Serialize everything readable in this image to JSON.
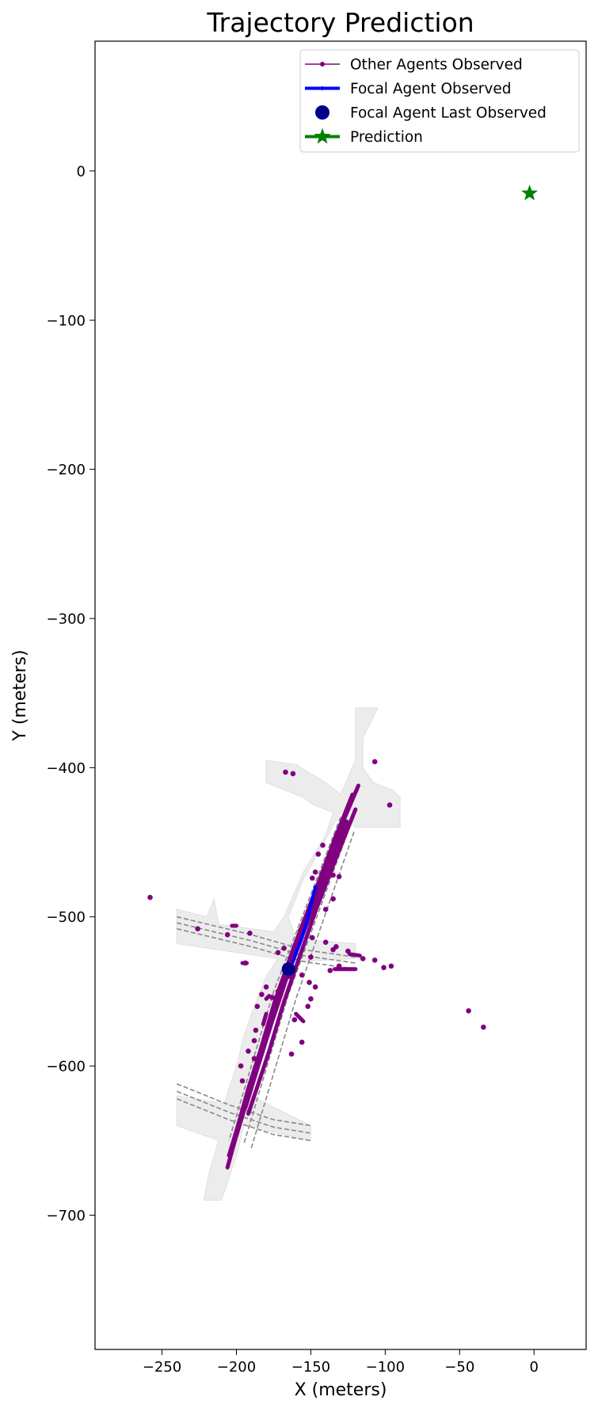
{
  "chart_data": {
    "type": "scatter",
    "title": "Trajectory Prediction",
    "xlabel": "X (meters)",
    "ylabel": "Y (meters)",
    "xlim": [
      -295,
      35
    ],
    "ylim": [
      -790,
      87
    ],
    "xticks": [
      -250,
      -200,
      -150,
      -100,
      -50,
      0
    ],
    "yticks": [
      0,
      -100,
      -200,
      -300,
      -400,
      -500,
      -600,
      -700
    ],
    "tick_labels_x": [
      "−250",
      "−200",
      "−150",
      "−100",
      "−50",
      "0"
    ],
    "tick_labels_y": [
      "0",
      "−100",
      "−200",
      "−300",
      "−400",
      "−500",
      "−600",
      "−700"
    ],
    "grid": false,
    "legend_position": "top-right",
    "legend": [
      {
        "label": "Other Agents Observed",
        "color": "#800080",
        "style": "line-dot"
      },
      {
        "label": "Focal Agent Observed",
        "color": "#0000ff",
        "style": "thick-line"
      },
      {
        "label": "Focal Agent Last Observed",
        "color": "#00008b",
        "style": "circle"
      },
      {
        "label": "Prediction",
        "color": "#008000",
        "style": "star-line"
      }
    ],
    "map_areas": [
      [
        [
          -120,
          -360
        ],
        [
          -105,
          -360
        ],
        [
          -115,
          -380
        ],
        [
          -115,
          -400
        ],
        [
          -108,
          -410
        ],
        [
          -95,
          -415
        ],
        [
          -90,
          -420
        ],
        [
          -90,
          -440
        ],
        [
          -120,
          -440
        ],
        [
          -130,
          -430
        ],
        [
          -155,
          -475
        ],
        [
          -165,
          -500
        ],
        [
          -160,
          -515
        ],
        [
          -120,
          -518
        ],
        [
          -120,
          -528
        ],
        [
          -160,
          -530
        ],
        [
          -165,
          -545
        ],
        [
          -175,
          -570
        ],
        [
          -185,
          -600
        ],
        [
          -190,
          -620
        ],
        [
          -150,
          -640
        ],
        [
          -150,
          -650
        ],
        [
          -195,
          -640
        ],
        [
          -200,
          -660
        ],
        [
          -205,
          -675
        ],
        [
          -210,
          -690
        ],
        [
          -222,
          -690
        ],
        [
          -218,
          -670
        ],
        [
          -215,
          -660
        ],
        [
          -212,
          -650
        ],
        [
          -240,
          -640
        ],
        [
          -240,
          -620
        ],
        [
          -208,
          -625
        ],
        [
          -205,
          -615
        ],
        [
          -200,
          -600
        ],
        [
          -195,
          -580
        ],
        [
          -188,
          -560
        ],
        [
          -180,
          -540
        ],
        [
          -172,
          -528
        ],
        [
          -240,
          -518
        ],
        [
          -240,
          -495
        ],
        [
          -220,
          -500
        ],
        [
          -215,
          -488
        ],
        [
          -212,
          -505
        ],
        [
          -175,
          -510
        ],
        [
          -168,
          -500
        ],
        [
          -155,
          -470
        ],
        [
          -140,
          -445
        ],
        [
          -135,
          -430
        ],
        [
          -148,
          -425
        ],
        [
          -155,
          -420
        ],
        [
          -180,
          -410
        ],
        [
          -180,
          -395
        ],
        [
          -160,
          -398
        ],
        [
          -140,
          -410
        ],
        [
          -130,
          -418
        ],
        [
          -120,
          -395
        ]
      ]
    ],
    "lane_lines": [
      [
        [
          -130,
          -433
        ],
        [
          -175,
          -550
        ],
        [
          -205,
          -650
        ]
      ],
      [
        [
          -127,
          -436
        ],
        [
          -170,
          -550
        ],
        [
          -200,
          -650
        ]
      ],
      [
        [
          -124,
          -440
        ],
        [
          -165,
          -552
        ],
        [
          -195,
          -652
        ]
      ],
      [
        [
          -121,
          -443
        ],
        [
          -160,
          -555
        ],
        [
          -190,
          -655
        ]
      ],
      [
        [
          -240,
          -500
        ],
        [
          -190,
          -512
        ],
        [
          -155,
          -522
        ],
        [
          -120,
          -527
        ]
      ],
      [
        [
          -240,
          -504
        ],
        [
          -190,
          -516
        ],
        [
          -155,
          -526
        ],
        [
          -120,
          -531
        ]
      ],
      [
        [
          -240,
          -508
        ],
        [
          -190,
          -520
        ],
        [
          -155,
          -530
        ],
        [
          -120,
          -535
        ]
      ],
      [
        [
          -240,
          -612
        ],
        [
          -205,
          -626
        ],
        [
          -175,
          -636
        ],
        [
          -150,
          -640
        ]
      ],
      [
        [
          -240,
          -617
        ],
        [
          -205,
          -631
        ],
        [
          -175,
          -641
        ],
        [
          -150,
          -645
        ]
      ],
      [
        [
          -240,
          -622
        ],
        [
          -205,
          -636
        ],
        [
          -175,
          -646
        ],
        [
          -150,
          -650
        ]
      ]
    ],
    "series": [
      {
        "name": "Other Agents Observed",
        "color": "#800080",
        "tracks": [
          [
            [
              -118,
              -412
            ],
            [
              -130,
              -440
            ],
            [
              -145,
              -480
            ],
            [
              -158,
              -515
            ],
            [
              -170,
              -548
            ],
            [
              -180,
              -580
            ],
            [
              -188,
              -605
            ],
            [
              -195,
              -630
            ],
            [
              -201,
              -650
            ],
            [
              -206,
              -668
            ]
          ],
          [
            [
              -122,
              -418
            ],
            [
              -134,
              -448
            ],
            [
              -149,
              -488
            ],
            [
              -162,
              -522
            ],
            [
              -174,
              -556
            ],
            [
              -184,
              -590
            ],
            [
              -192,
              -615
            ],
            [
              -199,
              -640
            ],
            [
              -205,
              -660
            ]
          ],
          [
            [
              -126,
              -436
            ],
            [
              -140,
              -472
            ],
            [
              -154,
              -508
            ],
            [
              -166,
              -540
            ],
            [
              -176,
              -570
            ],
            [
              -186,
              -602
            ],
            [
              -194,
              -628
            ]
          ],
          [
            [
              -120,
              -428
            ],
            [
              -132,
              -458
            ],
            [
              -146,
              -494
            ],
            [
              -158,
              -528
            ],
            [
              -169,
              -560
            ],
            [
              -178,
              -590
            ],
            [
              -186,
              -614
            ],
            [
              -192,
              -632
            ]
          ],
          [
            [
              -124,
              -525
            ],
            [
              -117,
              -526
            ]
          ],
          [
            [
              -134,
              -535
            ],
            [
              -120,
              -535
            ]
          ],
          [
            [
              -178,
              -553
            ],
            [
              -180,
              -555
            ]
          ],
          [
            [
              -180,
              -565
            ],
            [
              -182,
              -572
            ]
          ],
          [
            [
              -193,
              -531
            ],
            [
              -196,
              -531
            ]
          ],
          [
            [
              -160,
              -565
            ],
            [
              -155,
              -570
            ]
          ],
          [
            [
              -203,
              -506
            ],
            [
              -200,
              -506
            ]
          ]
        ],
        "points": [
          [
            -258,
            -487
          ],
          [
            -194,
            -531
          ],
          [
            -172,
            -524
          ],
          [
            -168,
            -521
          ],
          [
            -226,
            -508
          ],
          [
            -206,
            -512
          ],
          [
            -191,
            -511
          ],
          [
            -167,
            -403
          ],
          [
            -162,
            -404
          ],
          [
            -107,
            -396
          ],
          [
            -97,
            -425
          ],
          [
            -149,
            -474
          ],
          [
            -145,
            -458
          ],
          [
            -142,
            -452
          ],
          [
            -147,
            -470
          ],
          [
            -140,
            -495
          ],
          [
            -135,
            -488
          ],
          [
            -131,
            -473
          ],
          [
            -133,
            -446
          ],
          [
            -135,
            -472
          ],
          [
            -140,
            -517
          ],
          [
            -149,
            -514
          ],
          [
            -150,
            -527
          ],
          [
            -157,
            -509
          ],
          [
            -147,
            -547
          ],
          [
            -150,
            -555
          ],
          [
            -152,
            -560
          ],
          [
            -156,
            -584
          ],
          [
            -163,
            -592
          ],
          [
            -161,
            -569
          ],
          [
            -174,
            -563
          ],
          [
            -176,
            -554
          ],
          [
            -186,
            -560
          ],
          [
            -183,
            -552
          ],
          [
            -187,
            -576
          ],
          [
            -188,
            -583
          ],
          [
            -192,
            -590
          ],
          [
            -197,
            -600
          ],
          [
            -196,
            -610
          ],
          [
            -188,
            -595
          ],
          [
            -135,
            -522
          ],
          [
            -133,
            -520
          ],
          [
            -115,
            -528
          ],
          [
            -107,
            -529
          ],
          [
            -101,
            -534
          ],
          [
            -96,
            -533
          ],
          [
            -137,
            -536
          ],
          [
            -44,
            -563
          ],
          [
            -34,
            -574
          ],
          [
            -151,
            -544
          ],
          [
            -156,
            -539
          ],
          [
            -172,
            -550
          ],
          [
            -180,
            -547
          ],
          [
            -165,
            -540
          ],
          [
            -125,
            -523
          ],
          [
            -131,
            -533
          ]
        ]
      },
      {
        "name": "Focal Agent Observed",
        "color": "#0000ff",
        "x": [
          -147,
          -150,
          -153,
          -156,
          -159,
          -162
        ],
        "y": [
          -480,
          -492,
          -504,
          -514,
          -522,
          -530
        ]
      },
      {
        "name": "Focal Agent Last Observed",
        "color": "#00008b",
        "x": [
          -165
        ],
        "y": [
          -535
        ]
      },
      {
        "name": "Prediction",
        "color": "#008000",
        "x": [
          -3
        ],
        "y": [
          -15
        ]
      }
    ]
  }
}
